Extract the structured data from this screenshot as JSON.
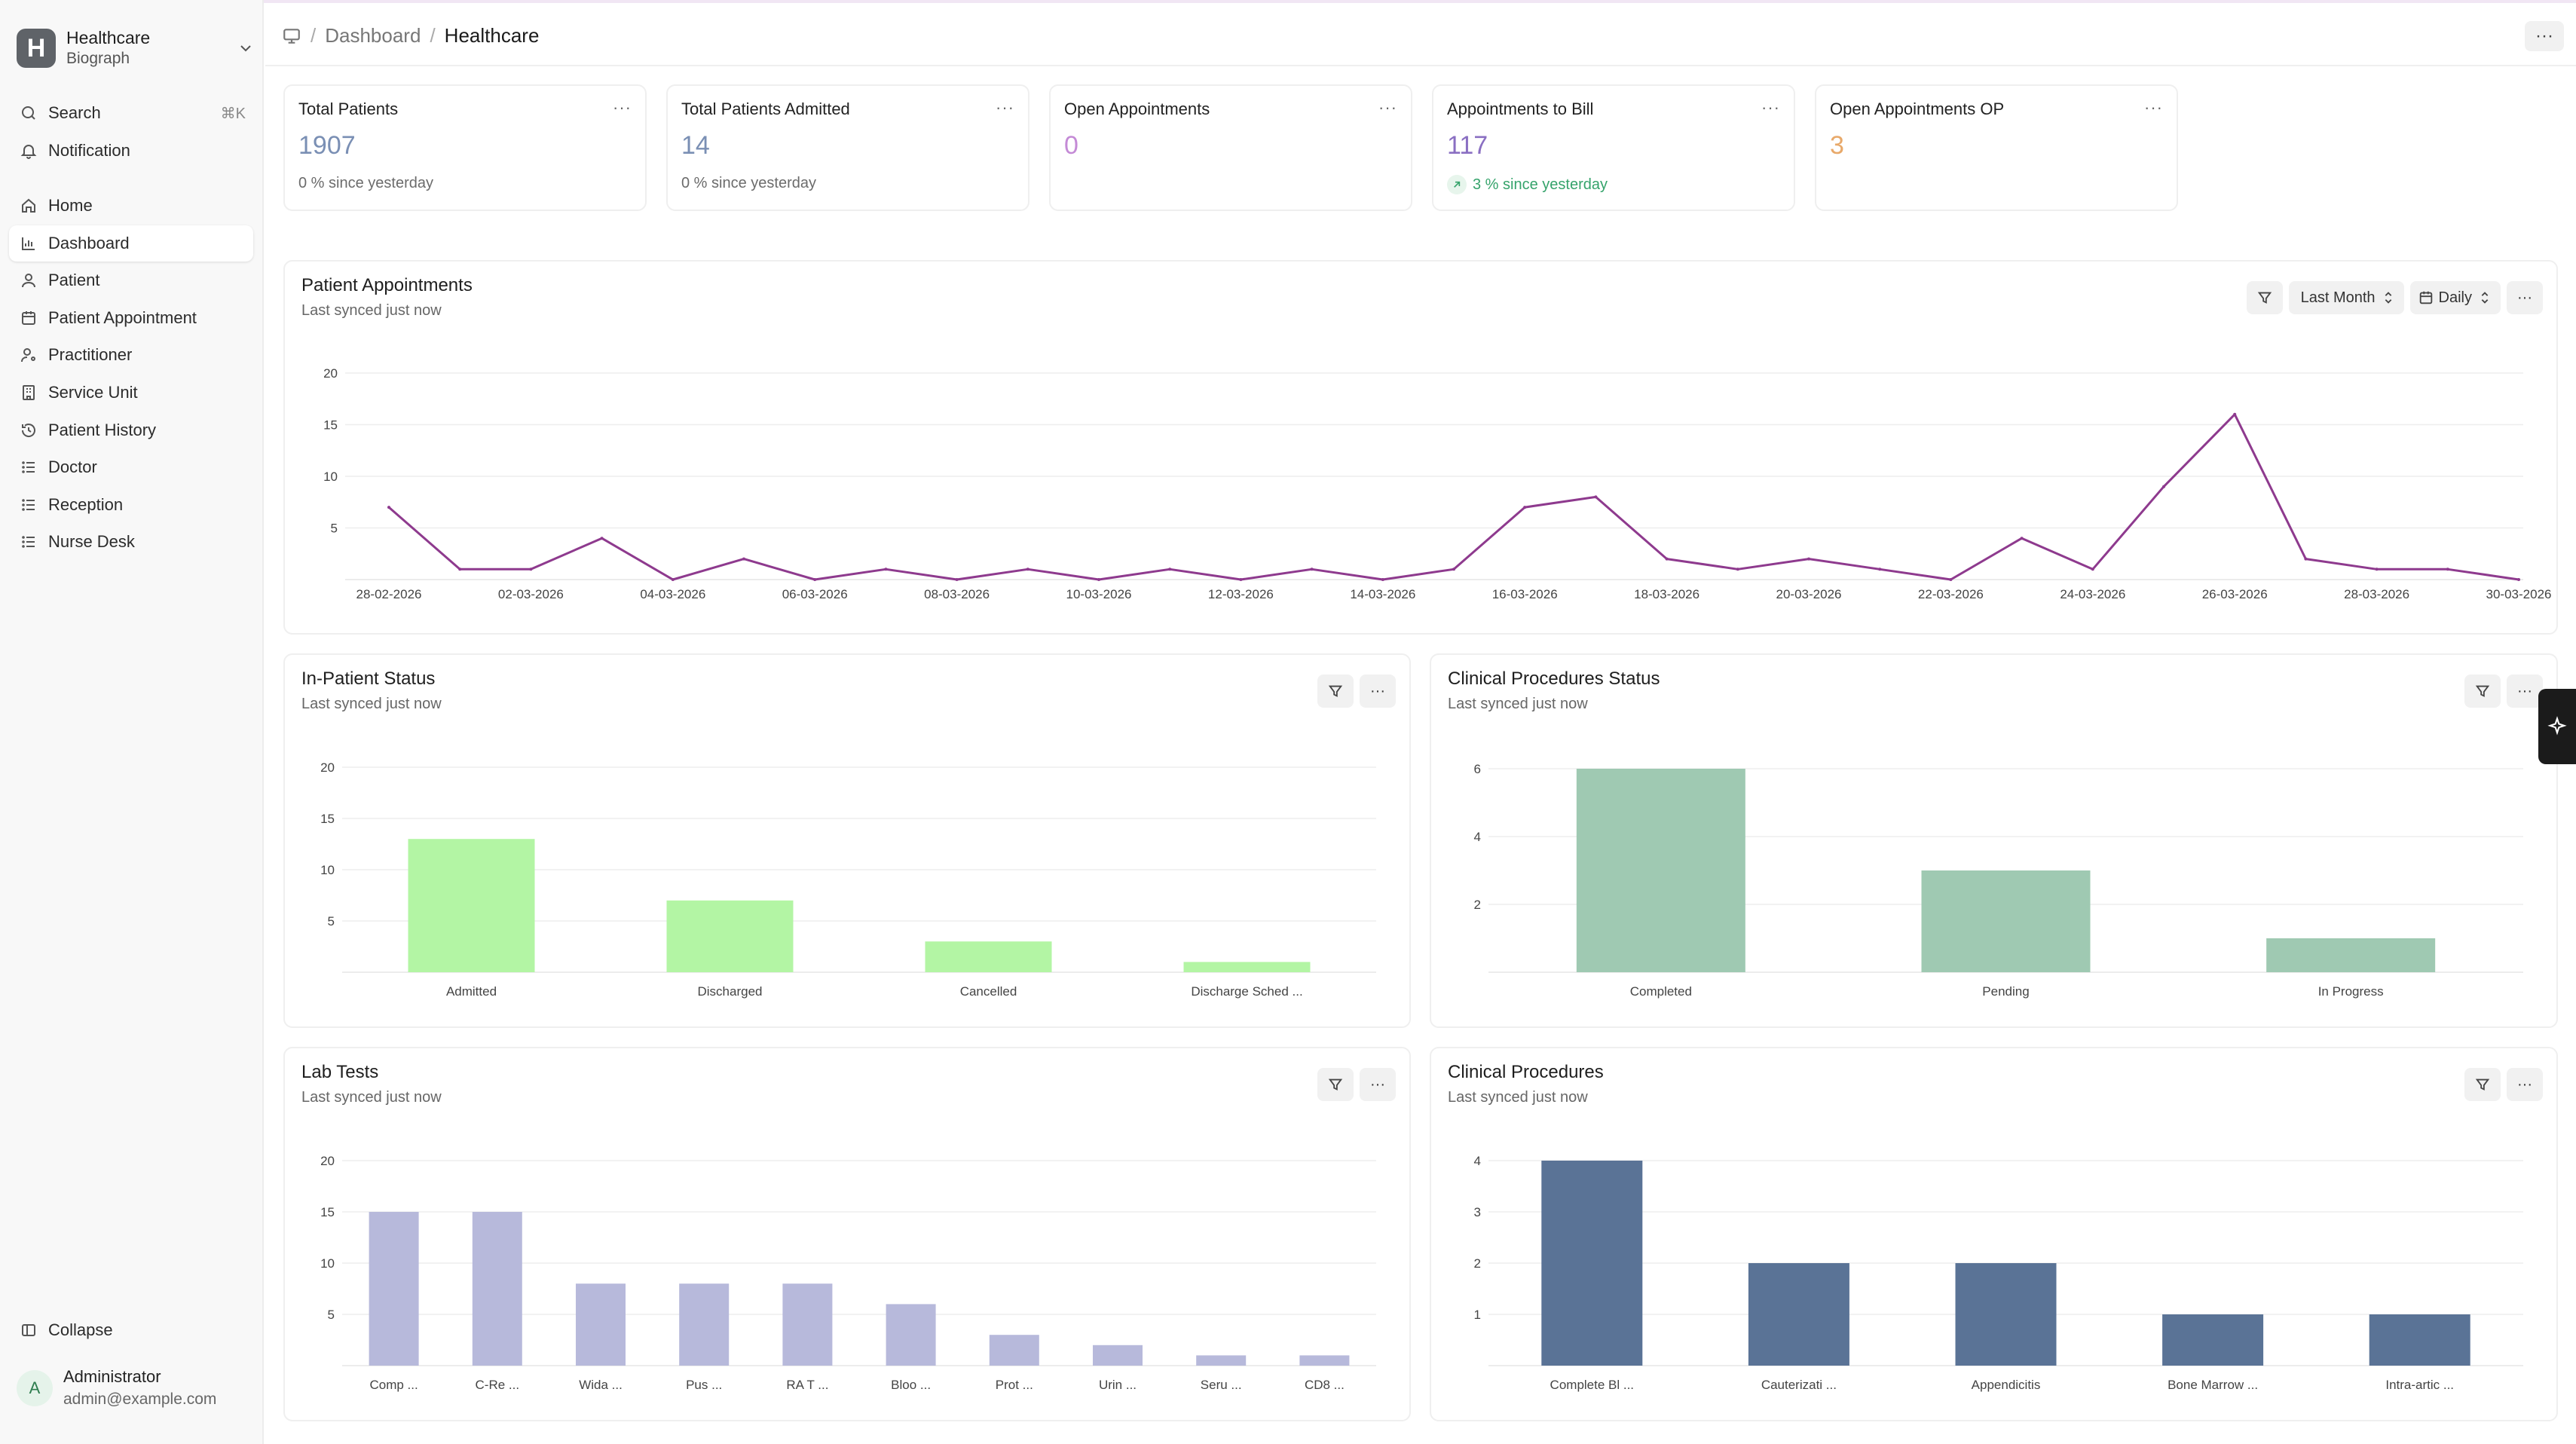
{
  "app": {
    "workspace_title": "Healthcare",
    "workspace_subtitle": "Biograph",
    "logo_letter": "H"
  },
  "sidebar": {
    "search_label": "Search",
    "search_shortcut": "⌘K",
    "notification_label": "Notification",
    "items": [
      {
        "label": "Home",
        "icon": "home-icon"
      },
      {
        "label": "Dashboard",
        "icon": "chart-icon",
        "active": true
      },
      {
        "label": "Patient",
        "icon": "user-icon"
      },
      {
        "label": "Patient Appointment",
        "icon": "calendar-icon"
      },
      {
        "label": "Practitioner",
        "icon": "user-cog-icon"
      },
      {
        "label": "Service Unit",
        "icon": "building-icon"
      },
      {
        "label": "Patient History",
        "icon": "history-icon"
      },
      {
        "label": "Doctor",
        "icon": "list-icon"
      },
      {
        "label": "Reception",
        "icon": "list-icon"
      },
      {
        "label": "Nurse Desk",
        "icon": "list-icon"
      }
    ],
    "collapse_label": "Collapse",
    "user": {
      "initial": "A",
      "name": "Administrator",
      "email": "admin@example.com"
    }
  },
  "breadcrumb": {
    "root": "Dashboard",
    "current": "Healthcare",
    "sep": "/"
  },
  "header": {
    "menu": "···"
  },
  "kpis": [
    {
      "title": "Total Patients",
      "value": "1907",
      "delta": "0 % since yesterday",
      "color": "#7a8fb4",
      "trend": "flat"
    },
    {
      "title": "Total Patients Admitted",
      "value": "14",
      "delta": "0 % since yesterday",
      "color": "#7a8fb4",
      "trend": "flat"
    },
    {
      "title": "Open Appointments",
      "value": "0",
      "delta": "",
      "color": "#c48ad6",
      "trend": "none"
    },
    {
      "title": "Appointments to Bill",
      "value": "117",
      "delta": "3 % since yesterday",
      "color": "#8a6fc2",
      "trend": "up"
    },
    {
      "title": "Open Appointments OP",
      "value": "3",
      "delta": "",
      "color": "#e8a96a",
      "trend": "none"
    }
  ],
  "dots": "···",
  "appointments_panel": {
    "title": "Patient Appointments",
    "subtitle": "Last synced just now",
    "period": "Last Month",
    "granularity": "Daily"
  },
  "panels": {
    "inpatient": {
      "title": "In-Patient Status",
      "subtitle": "Last synced just now"
    },
    "procedures_status": {
      "title": "Clinical Procedures Status",
      "subtitle": "Last synced just now"
    },
    "lab": {
      "title": "Lab Tests",
      "subtitle": "Last synced just now"
    },
    "procedures": {
      "title": "Clinical Procedures",
      "subtitle": "Last synced just now"
    }
  },
  "chart_data": [
    {
      "id": "appointments",
      "type": "line",
      "color": "#8e3a8e",
      "x": [
        "28-02-2026",
        "01-03-2026",
        "02-03-2026",
        "03-03-2026",
        "04-03-2026",
        "05-03-2026",
        "06-03-2026",
        "07-03-2026",
        "08-03-2026",
        "09-03-2026",
        "10-03-2026",
        "11-03-2026",
        "12-03-2026",
        "13-03-2026",
        "14-03-2026",
        "15-03-2026",
        "16-03-2026",
        "17-03-2026",
        "18-03-2026",
        "19-03-2026",
        "20-03-2026",
        "21-03-2026",
        "22-03-2026",
        "23-03-2026",
        "24-03-2026",
        "25-03-2026",
        "26-03-2026",
        "27-03-2026",
        "28-03-2026",
        "29-03-2026",
        "30-03-2026"
      ],
      "values": [
        7,
        1,
        1,
        4,
        0,
        2,
        0,
        1,
        0,
        1,
        0,
        1,
        0,
        1,
        0,
        1,
        7,
        8,
        2,
        1,
        2,
        1,
        0,
        4,
        1,
        9,
        16,
        2,
        1,
        1,
        0
      ],
      "tick_labels": [
        "28-02-2026",
        "02-03-2026",
        "04-03-2026",
        "06-03-2026",
        "08-03-2026",
        "10-03-2026",
        "12-03-2026",
        "14-03-2026",
        "16-03-2026",
        "18-03-2026",
        "20-03-2026",
        "22-03-2026",
        "24-03-2026",
        "26-03-2026",
        "28-03-2026",
        "30-03-2026"
      ],
      "yticks": [
        5,
        10,
        15,
        20
      ],
      "ylim": [
        0,
        20
      ]
    },
    {
      "id": "inpatient",
      "type": "bar",
      "color": "#b3f5a4",
      "categories": [
        "Admitted",
        "Discharged",
        "Cancelled",
        "Discharge Sched ..."
      ],
      "values": [
        13,
        7,
        3,
        1
      ],
      "yticks": [
        5,
        10,
        15,
        20
      ],
      "ylim": [
        0,
        20
      ]
    },
    {
      "id": "procedures_status",
      "type": "bar",
      "color": "#9fc9b2",
      "categories": [
        "Completed",
        "Pending",
        "In Progress"
      ],
      "values": [
        6,
        3,
        1
      ],
      "yticks": [
        2,
        4,
        6
      ],
      "ylim": [
        0,
        6
      ]
    },
    {
      "id": "lab",
      "type": "bar",
      "color": "#b7b9db",
      "categories": [
        "Comp ...",
        "C-Re ...",
        "Wida ...",
        "Pus ...",
        "RA T ...",
        "Bloo ...",
        "Prot ...",
        "Urin ...",
        "Seru ...",
        "CD8 ..."
      ],
      "values": [
        15,
        15,
        8,
        8,
        8,
        6,
        3,
        2,
        1,
        1
      ],
      "yticks": [
        5,
        10,
        15,
        20
      ],
      "ylim": [
        0,
        20
      ]
    },
    {
      "id": "procedures",
      "type": "bar",
      "color": "#5a7396",
      "categories": [
        "Complete Bl ...",
        "Cauterizati ...",
        "Appendicitis",
        "Bone Marrow ...",
        "Intra-artic ..."
      ],
      "values": [
        4,
        2,
        2,
        1,
        1
      ],
      "yticks": [
        1,
        2,
        3,
        4
      ],
      "ylim": [
        0,
        4
      ]
    }
  ]
}
